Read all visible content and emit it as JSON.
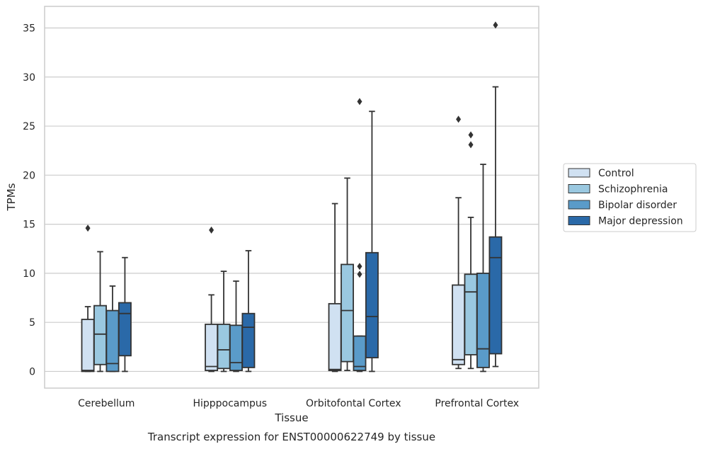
{
  "chart_data": {
    "type": "box",
    "xlabel": "Tissue",
    "ylabel": "TPMs",
    "caption": "Transcript expression for ENST00000622749 by tissue",
    "ylim": [
      -1.7,
      37.2
    ],
    "yticks": [
      0,
      5,
      10,
      15,
      20,
      25,
      30,
      35
    ],
    "grid": "horizontal",
    "legend_position": "right",
    "categories": [
      "Cerebellum",
      "Hipppocampus",
      "Orbitofontal Cortex",
      "Prefrontal Cortex"
    ],
    "series": [
      {
        "name": "Control",
        "color": "#d0e1f2",
        "boxes": [
          {
            "whislo": 0,
            "q1": 0.0,
            "med": 0.1,
            "q3": 5.3,
            "whishi": 6.6,
            "fliers": [
              14.6
            ]
          },
          {
            "whislo": 0,
            "q1": 0.1,
            "med": 0.5,
            "q3": 4.8,
            "whishi": 7.8,
            "fliers": [
              14.4
            ]
          },
          {
            "whislo": 0,
            "q1": 0.1,
            "med": 0.2,
            "q3": 6.9,
            "whishi": 17.1,
            "fliers": []
          },
          {
            "whislo": 0.3,
            "q1": 0.7,
            "med": 1.2,
            "q3": 8.8,
            "whishi": 17.7,
            "fliers": [
              25.7
            ]
          }
        ]
      },
      {
        "name": "Schizophrenia",
        "color": "#9ac8e0",
        "boxes": [
          {
            "whislo": 0,
            "q1": 0.7,
            "med": 3.8,
            "q3": 6.7,
            "whishi": 12.2,
            "fliers": []
          },
          {
            "whislo": 0,
            "q1": 0.3,
            "med": 2.2,
            "q3": 4.8,
            "whishi": 10.2,
            "fliers": []
          },
          {
            "whislo": 0.1,
            "q1": 1.0,
            "med": 6.2,
            "q3": 10.9,
            "whishi": 19.7,
            "fliers": []
          },
          {
            "whislo": 0.3,
            "q1": 1.7,
            "med": 8.1,
            "q3": 9.9,
            "whishi": 15.7,
            "fliers": [
              24.1,
              23.1
            ]
          }
        ]
      },
      {
        "name": "Bipolar disorder",
        "color": "#5a9bc9",
        "boxes": [
          {
            "whislo": 0,
            "q1": 0.0,
            "med": 0.8,
            "q3": 6.2,
            "whishi": 8.7,
            "fliers": []
          },
          {
            "whislo": 0,
            "q1": 0.1,
            "med": 0.9,
            "q3": 4.7,
            "whishi": 9.2,
            "fliers": []
          },
          {
            "whislo": 0,
            "q1": 0.1,
            "med": 0.5,
            "q3": 3.6,
            "whishi": 3.6,
            "fliers": [
              10.7,
              9.9,
              27.5
            ]
          },
          {
            "whislo": 0,
            "q1": 0.4,
            "med": 2.3,
            "q3": 10.0,
            "whishi": 21.1,
            "fliers": []
          }
        ]
      },
      {
        "name": "Major depression",
        "color": "#2a69a8",
        "boxes": [
          {
            "whislo": 0,
            "q1": 1.6,
            "med": 5.9,
            "q3": 7.0,
            "whishi": 11.6,
            "fliers": []
          },
          {
            "whislo": 0,
            "q1": 0.4,
            "med": 4.5,
            "q3": 5.9,
            "whishi": 12.3,
            "fliers": []
          },
          {
            "whislo": 0,
            "q1": 1.4,
            "med": 5.6,
            "q3": 12.1,
            "whishi": 26.5,
            "fliers": []
          },
          {
            "whislo": 0.5,
            "q1": 1.8,
            "med": 11.6,
            "q3": 13.7,
            "whishi": 29.0,
            "fliers": [
              35.3
            ]
          }
        ]
      }
    ]
  }
}
